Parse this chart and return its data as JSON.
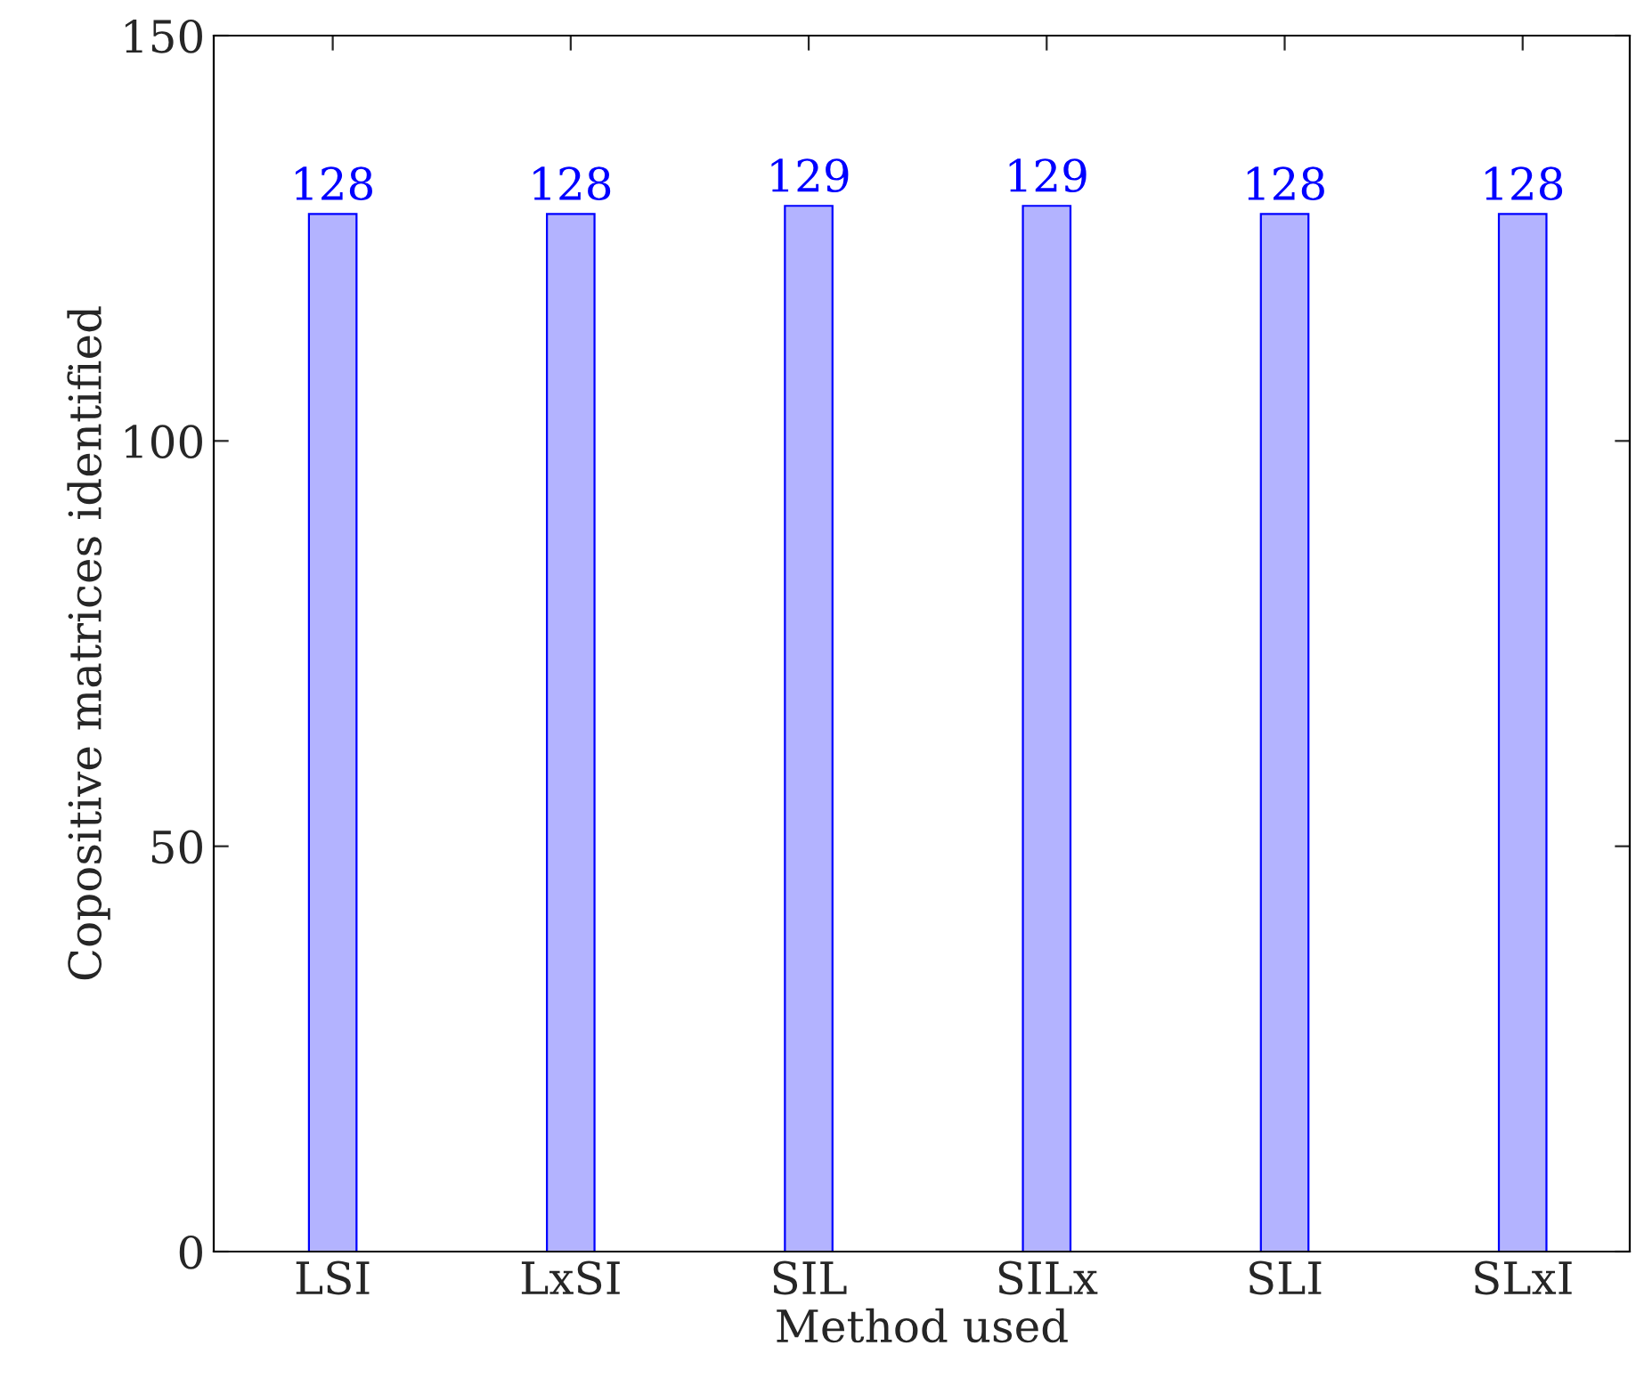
{
  "chart_data": {
    "type": "bar",
    "xlabel": "Method used",
    "ylabel": "Copositive matrices identified",
    "categories": [
      "LSI",
      "LxSI",
      "SIL",
      "SILx",
      "SLI",
      "SLxI"
    ],
    "series": [
      {
        "color": "#b3b3ff",
        "values": [
          128,
          128,
          129,
          129,
          128,
          128
        ]
      }
    ],
    "ylim": [
      0,
      150
    ],
    "yticks": [
      0,
      50,
      100,
      150
    ],
    "data_labels": true,
    "grid": false
  }
}
